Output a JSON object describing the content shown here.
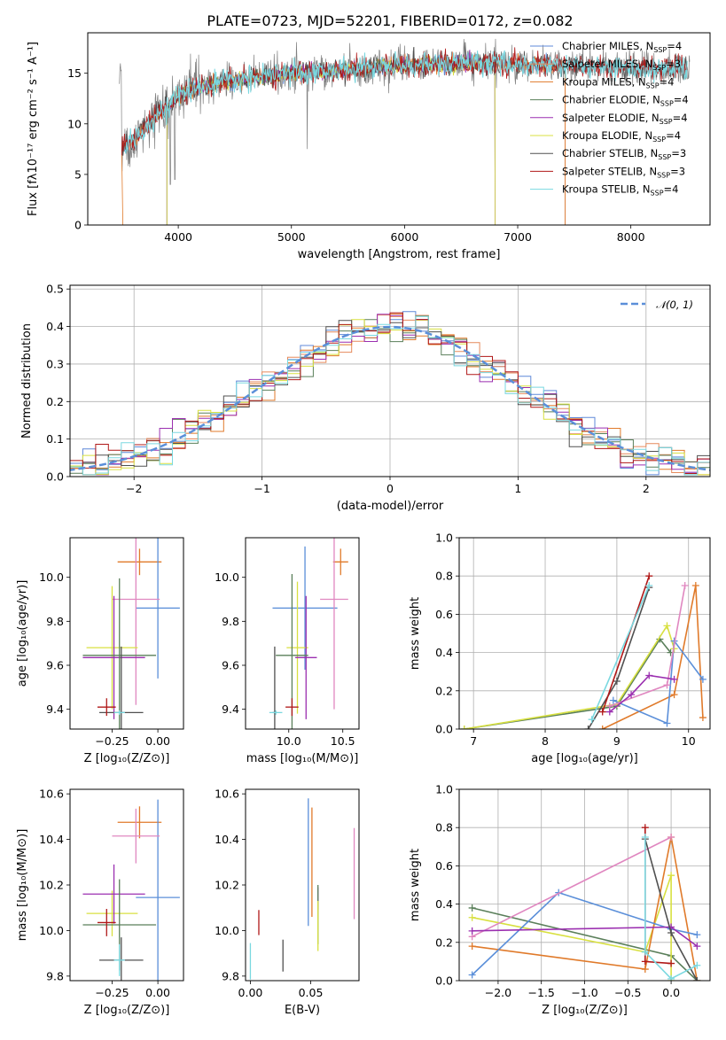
{
  "series_colors": {
    "Chabrier MILES": "#5f88d8",
    "Salpeter MILES": "#e68a5c",
    "Kroupa MILES": "#e07a2a",
    "Chabrier ELODIE": "#5a7f5a",
    "Salpeter ELODIE": "#9b2fb0",
    "Kroupa ELODIE": "#d8e040",
    "Chabrier STELIB": "#505050",
    "Salpeter STELIB": "#b01818",
    "Kroupa STELIB": "#7ad8e0",
    "Pink": "#e087c0",
    "Normal": "#5b8fd9"
  },
  "chart_data": [
    {
      "id": "spectrum",
      "type": "line",
      "title": "PLATE=0723, MJD=52201, FIBERID=0172, z=0.082",
      "xlabel": "wavelength [Angstrom, rest frame]",
      "ylabel": "Flux [fλ10⁻¹⁷ erg cm⁻² s⁻¹ A⁻¹]",
      "xlim": [
        3200,
        8700
      ],
      "ylim": [
        0,
        19
      ],
      "xticks": [
        4000,
        5000,
        6000,
        7000,
        8000
      ],
      "yticks": [
        0,
        5,
        10,
        15
      ],
      "grid": false,
      "legend_position": "right",
      "legend": [
        {
          "label": "Chabrier MILES, N",
          "sub": "SSP",
          "suffix": "=4"
        },
        {
          "label": "Salpeter MILES, N",
          "sub": "SSP",
          "suffix": "=3"
        },
        {
          "label": "Kroupa MILES, N",
          "sub": "SSP",
          "suffix": "=4"
        },
        {
          "label": "Chabrier ELODIE, N",
          "sub": "SSP",
          "suffix": "=4"
        },
        {
          "label": "Salpeter ELODIE, N",
          "sub": "SSP",
          "suffix": "=4"
        },
        {
          "label": "Kroupa ELODIE, N",
          "sub": "SSP",
          "suffix": "=4"
        },
        {
          "label": "Chabrier STELIB, N",
          "sub": "SSP",
          "suffix": "=3"
        },
        {
          "label": "Salpeter STELIB, N",
          "sub": "SSP",
          "suffix": "=3"
        },
        {
          "label": "Kroupa STELIB, N",
          "sub": "SSP",
          "suffix": "=4"
        }
      ],
      "continuum": {
        "x": [
          3500,
          3600,
          3700,
          3800,
          3900,
          4000,
          4200,
          4500,
          5000,
          5500,
          6000,
          6500,
          7000,
          7500,
          8000,
          8500
        ],
        "y": [
          7.5,
          8.5,
          9.5,
          11,
          11.5,
          12.8,
          13.6,
          14.3,
          15.0,
          15.4,
          15.8,
          16.0,
          15.9,
          15.7,
          15.5,
          15.4
        ]
      }
    },
    {
      "id": "residuals",
      "type": "step",
      "xlabel": "(data-model)/error",
      "ylabel": "Normed distribution",
      "xlim": [
        -2.5,
        2.5
      ],
      "ylim": [
        0,
        0.51
      ],
      "xticks": [
        -2,
        -1,
        0,
        1,
        2
      ],
      "yticks": [
        0.0,
        0.1,
        0.2,
        0.3,
        0.4,
        0.5
      ],
      "grid": true,
      "legend_position": "top-right",
      "normal_label": "𝒩(0, 1)"
    },
    {
      "id": "age_vs_Z",
      "type": "errorbar",
      "xlabel": "Z [log₁₀(Z/Z⊙)]",
      "ylabel": "age  [log₁₀(age/yr)]",
      "xlim": [
        -0.48,
        0.14
      ],
      "ylim": [
        9.31,
        10.18
      ],
      "xticks": [
        -0.25,
        0.0
      ],
      "yticks": [
        9.4,
        9.6,
        9.8,
        10.0
      ],
      "points": [
        {
          "color": "Kroupa MILES",
          "x": -0.1,
          "xerr": 0.12,
          "y": 10.07,
          "yerr": 0.06
        },
        {
          "color": "Normal",
          "x": 0.0,
          "xerr": 0.12,
          "y": 9.86,
          "yerr": 0.32
        },
        {
          "color": "Pink",
          "x": -0.12,
          "xerr": 0.13,
          "y": 9.9,
          "yerr": 0.48
        },
        {
          "color": "Kroupa ELODIE",
          "x": -0.25,
          "xerr": 0.14,
          "y": 9.68,
          "yerr": 0.28
        },
        {
          "color": "Salpeter ELODIE",
          "x": -0.24,
          "xerr": 0.17,
          "y": 9.635,
          "yerr": 0.28
        },
        {
          "color": "Chabrier ELODIE",
          "x": -0.21,
          "xerr": 0.2,
          "y": 9.645,
          "yerr": 0.35
        },
        {
          "color": "Chabrier STELIB",
          "x": -0.2,
          "xerr": 0.12,
          "y": 9.385,
          "yerr": 0.3
        },
        {
          "color": "Salpeter STELIB",
          "x": -0.28,
          "xerr": 0.05,
          "y": 9.41,
          "yerr": 0.04
        },
        {
          "color": "Kroupa STELIB",
          "x": -0.21,
          "xerr": 0.03,
          "y": 9.385,
          "yerr": 0.01
        }
      ]
    },
    {
      "id": "age_vs_mass",
      "type": "errorbar",
      "xlabel": "mass [log₁₀(M/M⊙)]",
      "ylabel": "",
      "xlim": [
        9.6,
        10.65
      ],
      "ylim": [
        9.31,
        10.18
      ],
      "xticks": [
        10.0,
        10.5
      ],
      "yticks": [
        9.4,
        9.6,
        9.8,
        10.0
      ],
      "points": [
        {
          "color": "Kroupa MILES",
          "x": 10.48,
          "xerr": 0.07,
          "y": 10.07,
          "yerr": 0.06
        },
        {
          "color": "Normal",
          "x": 10.15,
          "xerr": 0.3,
          "y": 9.86,
          "yerr": 0.28
        },
        {
          "color": "Pink",
          "x": 10.42,
          "xerr": 0.13,
          "y": 9.9,
          "yerr": 0.5
        },
        {
          "color": "Kroupa ELODIE",
          "x": 10.08,
          "xerr": 0.1,
          "y": 9.68,
          "yerr": 0.3
        },
        {
          "color": "Salpeter ELODIE",
          "x": 10.16,
          "xerr": 0.1,
          "y": 9.635,
          "yerr": 0.28
        },
        {
          "color": "Chabrier ELODIE",
          "x": 10.03,
          "xerr": 0.15,
          "y": 9.645,
          "yerr": 0.37
        },
        {
          "color": "Chabrier STELIB",
          "x": 9.87,
          "xerr": 0.02,
          "y": 9.385,
          "yerr": 0.3
        },
        {
          "color": "Salpeter STELIB",
          "x": 10.03,
          "xerr": 0.06,
          "y": 9.41,
          "yerr": 0.04
        },
        {
          "color": "Kroupa STELIB",
          "x": 9.88,
          "xerr": 0.06,
          "y": 9.385,
          "yerr": 0.01
        }
      ]
    },
    {
      "id": "mass_weight_vs_age",
      "type": "line",
      "xlabel": "age  [log₁₀(age/yr)]",
      "ylabel": "mass weight",
      "xlim": [
        6.8,
        10.3
      ],
      "ylim": [
        0,
        1
      ],
      "xticks": [
        7,
        8,
        9,
        10
      ],
      "yticks": [
        0.0,
        0.2,
        0.4,
        0.6,
        0.8,
        1.0
      ],
      "grid": true,
      "series": [
        {
          "color": "Chabrier ELODIE",
          "x": [
            6.87,
            9.0,
            9.6,
            9.75
          ],
          "y": [
            0.0,
            0.12,
            0.47,
            0.4
          ]
        },
        {
          "color": "Kroupa ELODIE",
          "x": [
            6.87,
            9.0,
            9.7,
            9.8
          ],
          "y": [
            0.0,
            0.13,
            0.54,
            0.42
          ]
        },
        {
          "color": "Kroupa MILES",
          "x": [
            8.8,
            9.8,
            10.1,
            10.2
          ],
          "y": [
            0.0,
            0.18,
            0.75,
            0.06
          ]
        },
        {
          "color": "Normal",
          "x": [
            8.95,
            9.7,
            9.8,
            10.2
          ],
          "y": [
            0.15,
            0.03,
            0.46,
            0.26
          ]
        },
        {
          "color": "Pink",
          "x": [
            8.9,
            9.7,
            9.95
          ],
          "y": [
            0.12,
            0.23,
            0.75
          ]
        },
        {
          "color": "Salpeter ELODIE",
          "x": [
            8.9,
            9.2,
            9.45,
            9.8
          ],
          "y": [
            0.09,
            0.18,
            0.28,
            0.26
          ]
        },
        {
          "color": "Chabrier STELIB",
          "x": [
            8.6,
            9.0,
            9.45
          ],
          "y": [
            0.0,
            0.25,
            0.74
          ]
        },
        {
          "color": "Salpeter STELIB",
          "x": [
            8.8,
            9.45
          ],
          "y": [
            0.09,
            0.8
          ]
        },
        {
          "color": "Kroupa STELIB",
          "x": [
            8.65,
            9.45
          ],
          "y": [
            0.05,
            0.75
          ]
        }
      ]
    },
    {
      "id": "mass_vs_Z",
      "type": "errorbar",
      "xlabel": "Z [log₁₀(Z/Z⊙)]",
      "ylabel": "mass [log₁₀(M/M⊙)]",
      "xlim": [
        -0.48,
        0.14
      ],
      "ylim": [
        9.78,
        10.62
      ],
      "xticks": [
        -0.25,
        0.0
      ],
      "yticks": [
        9.8,
        10.0,
        10.2,
        10.4,
        10.6
      ],
      "points": [
        {
          "color": "Kroupa MILES",
          "x": -0.1,
          "xerr": 0.12,
          "y": 10.475,
          "yerr": 0.07
        },
        {
          "color": "Normal",
          "x": 0.0,
          "xerr": 0.12,
          "y": 10.145,
          "yerr": 0.43
        },
        {
          "color": "Pink",
          "x": -0.12,
          "xerr": 0.13,
          "y": 10.415,
          "yerr": 0.12
        },
        {
          "color": "Kroupa ELODIE",
          "x": -0.25,
          "xerr": 0.14,
          "y": 10.075,
          "yerr": 0.1
        },
        {
          "color": "Salpeter ELODIE",
          "x": -0.24,
          "xerr": 0.17,
          "y": 10.16,
          "yerr": 0.13
        },
        {
          "color": "Chabrier ELODIE",
          "x": -0.21,
          "xerr": 0.2,
          "y": 10.025,
          "yerr": 0.2
        },
        {
          "color": "Chabrier STELIB",
          "x": -0.2,
          "xerr": 0.12,
          "y": 9.87,
          "yerr": 0.1
        },
        {
          "color": "Salpeter STELIB",
          "x": -0.28,
          "xerr": 0.05,
          "y": 10.035,
          "yerr": 0.06
        },
        {
          "color": "Kroupa STELIB",
          "x": -0.21,
          "xerr": 0.03,
          "y": 9.87,
          "yerr": 0.07
        }
      ]
    },
    {
      "id": "mass_vs_EBV",
      "type": "errorbar",
      "xlabel": "E(B-V)",
      "ylabel": "",
      "xlim": [
        -0.004,
        0.09
      ],
      "ylim": [
        9.78,
        10.62
      ],
      "xticks": [
        0.0,
        0.05
      ],
      "yticks": [
        9.8,
        10.0,
        10.2,
        10.4,
        10.6
      ],
      "points": [
        {
          "color": "Normal",
          "x": 0.048,
          "y": 10.3,
          "yerr": 0.28
        },
        {
          "color": "Kroupa MILES",
          "x": 0.051,
          "y": 10.3,
          "yerr": 0.24
        },
        {
          "color": "Pink",
          "x": 0.086,
          "y": 10.25,
          "yerr": 0.2
        },
        {
          "color": "Salpeter ELODIE",
          "x": 0.056,
          "y": 10.14,
          "yerr": 0.05
        },
        {
          "color": "Chabrier ELODIE",
          "x": 0.056,
          "y": 10.07,
          "yerr": 0.13
        },
        {
          "color": "Kroupa ELODIE",
          "x": 0.056,
          "y": 10.02,
          "yerr": 0.11
        },
        {
          "color": "Salpeter STELIB",
          "x": 0.007,
          "y": 10.035,
          "yerr": 0.055
        },
        {
          "color": "Chabrier STELIB",
          "x": 0.027,
          "y": 9.89,
          "yerr": 0.07
        },
        {
          "color": "Kroupa STELIB",
          "x": 0.0,
          "y": 9.865,
          "yerr": 0.08
        }
      ]
    },
    {
      "id": "mass_weight_vs_Z",
      "type": "line",
      "xlabel": "Z [log₁₀(Z/Z⊙)]",
      "ylabel": "mass weight",
      "xlim": [
        -2.45,
        0.45
      ],
      "ylim": [
        0,
        1
      ],
      "xticks": [
        -2.0,
        -1.5,
        -1.0,
        -0.5,
        0.0
      ],
      "yticks": [
        0.0,
        0.2,
        0.4,
        0.6,
        0.8,
        1.0
      ],
      "grid": true,
      "series": [
        {
          "color": "Chabrier ELODIE",
          "x": [
            -2.3,
            0.0,
            0.3
          ],
          "y": [
            0.38,
            0.13,
            0.0
          ]
        },
        {
          "color": "Kroupa ELODIE",
          "x": [
            -2.3,
            -0.3,
            0.0,
            0.0
          ],
          "y": [
            0.33,
            0.15,
            0.55,
            0.0
          ]
        },
        {
          "color": "Kroupa MILES",
          "x": [
            -2.3,
            -0.3,
            0.0,
            0.3
          ],
          "y": [
            0.18,
            0.06,
            0.75,
            0.0
          ]
        },
        {
          "color": "Normal",
          "x": [
            -2.3,
            -1.3,
            0.0,
            0.3
          ],
          "y": [
            0.03,
            0.46,
            0.27,
            0.24
          ]
        },
        {
          "color": "Pink",
          "x": [
            -2.3,
            0.0
          ],
          "y": [
            0.23,
            0.75
          ]
        },
        {
          "color": "Salpeter ELODIE",
          "x": [
            -2.3,
            0.0,
            0.3
          ],
          "y": [
            0.26,
            0.28,
            0.18
          ]
        },
        {
          "color": "Chabrier STELIB",
          "x": [
            -0.3,
            0.0,
            0.3
          ],
          "y": [
            0.74,
            0.25,
            0.0
          ]
        },
        {
          "color": "Salpeter STELIB",
          "x": [
            -0.3,
            -0.3,
            0.0
          ],
          "y": [
            0.8,
            0.1,
            0.09
          ]
        },
        {
          "color": "Kroupa STELIB",
          "x": [
            -0.3,
            -0.3,
            0.0,
            0.3
          ],
          "y": [
            0.75,
            0.15,
            0.01,
            0.08
          ]
        }
      ]
    }
  ]
}
